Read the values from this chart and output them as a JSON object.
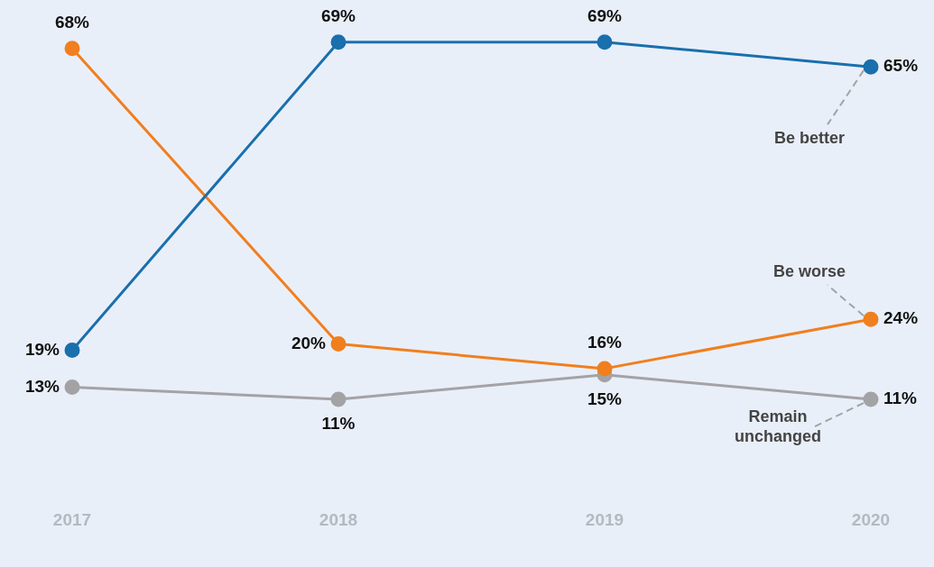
{
  "chart_data": {
    "type": "line",
    "categories": [
      "2017",
      "2018",
      "2019",
      "2020"
    ],
    "series": [
      {
        "name": "Be better",
        "color": "#1a6fad",
        "values": [
          19,
          69,
          69,
          65
        ],
        "value_labels": [
          "19%",
          "69%",
          "69%",
          "65%"
        ]
      },
      {
        "name": "Be worse",
        "color": "#f07f1e",
        "values": [
          68,
          20,
          16,
          24
        ],
        "value_labels": [
          "68%",
          "20%",
          "16%",
          "24%"
        ]
      },
      {
        "name": "Remain unchanged",
        "color": "#a3a3a6",
        "values": [
          13,
          11,
          15,
          11
        ],
        "value_labels": [
          "13%",
          "11%",
          "15%",
          "11%"
        ]
      }
    ],
    "legend": "right",
    "grid": false,
    "marker": "circle",
    "line_style": "solid",
    "tick_labels": "x"
  }
}
